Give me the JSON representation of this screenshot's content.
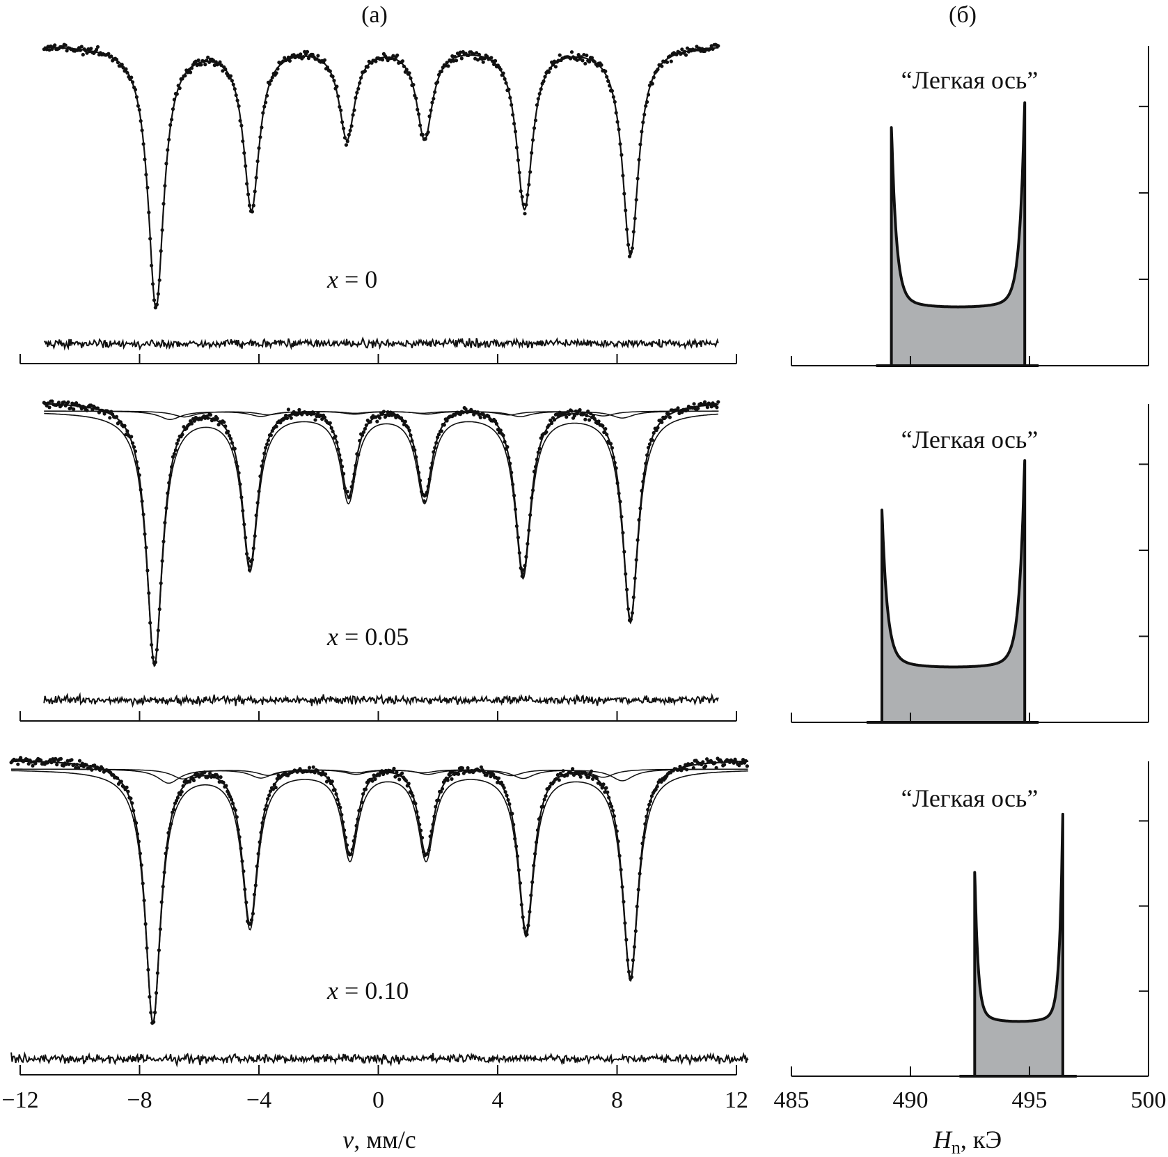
{
  "figure": {
    "panel_a_label": "(а)",
    "panel_b_label": "(б)",
    "a_xlabel_italic": "v",
    "a_xlabel_rest": ", мм/с",
    "b_xlabel_italic": "H",
    "b_xlabel_sub": "n",
    "b_xlabel_rest": ", кЭ",
    "a_tick_labels": [
      "−12",
      "−8",
      "−4",
      "0",
      "4",
      "8",
      "12"
    ],
    "b_tick_labels": [
      "485",
      "490",
      "495",
      "500"
    ],
    "samples": [
      {
        "x_label": "x = 0",
        "x_italic": "x",
        "x_rest": " = 0",
        "dist_label": "“Легкая ось”"
      },
      {
        "x_label": "x = 0.05",
        "x_italic": "x",
        "x_rest": " = 0.05",
        "dist_label": "“Легкая ось”"
      },
      {
        "x_label": "x = 0.10",
        "x_italic": "x",
        "x_rest": " = 0.10",
        "dist_label": "“Легкая ось”"
      }
    ]
  },
  "chart_data": [
    {
      "type": "line",
      "panel": "(а)",
      "description_of_content": "Mössbauer spectra (transmission vs velocity) for three compositions, with fitted curves, subspectra and difference residuals",
      "xlabel": "v, мм/с",
      "xlim": [
        -12,
        12
      ],
      "xticks": [
        -12,
        -8,
        -4,
        0,
        4,
        8,
        12
      ],
      "spectra": [
        {
          "composition": "x = 0",
          "line_positions": [
            -7.45,
            -4.25,
            -1.05,
            1.55,
            4.9,
            8.45
          ],
          "relative_depths": [
            1.0,
            0.62,
            0.35,
            0.35,
            0.62,
            0.8
          ],
          "subspectra": 0
        },
        {
          "composition": "x = 0.05",
          "line_positions": [
            -7.5,
            -4.3,
            -1.0,
            1.55,
            4.85,
            8.45
          ],
          "relative_depths": [
            1.0,
            0.62,
            0.35,
            0.35,
            0.65,
            0.83
          ],
          "subspectra": 2
        },
        {
          "composition": "x = 0.10",
          "line_positions": [
            -7.55,
            -4.3,
            -0.95,
            1.6,
            4.95,
            8.45
          ],
          "relative_depths": [
            1.0,
            0.62,
            0.35,
            0.35,
            0.65,
            0.83
          ],
          "subspectra": 2
        }
      ]
    },
    {
      "type": "area",
      "panel": "(б)",
      "xlabel": "Hn, кЭ",
      "xlim": [
        485,
        500
      ],
      "xticks": [
        485,
        490,
        495,
        500
      ],
      "distributions": [
        {
          "composition": "x = 0",
          "label": "“Легкая ось”",
          "h_min": 489.2,
          "h_max": 494.8,
          "left_peak": 0.72,
          "right_peak": 0.8,
          "floor": 0.18
        },
        {
          "composition": "x = 0.05",
          "label": "“Легкая ось”",
          "h_min": 488.8,
          "h_max": 494.8,
          "left_peak": 0.64,
          "right_peak": 0.8,
          "floor": 0.17
        },
        {
          "composition": "x = 0.10",
          "label": "“Легкая ось”",
          "h_min": 492.7,
          "h_max": 496.4,
          "left_peak": 0.62,
          "right_peak": 0.81,
          "floor": 0.17
        }
      ]
    }
  ]
}
